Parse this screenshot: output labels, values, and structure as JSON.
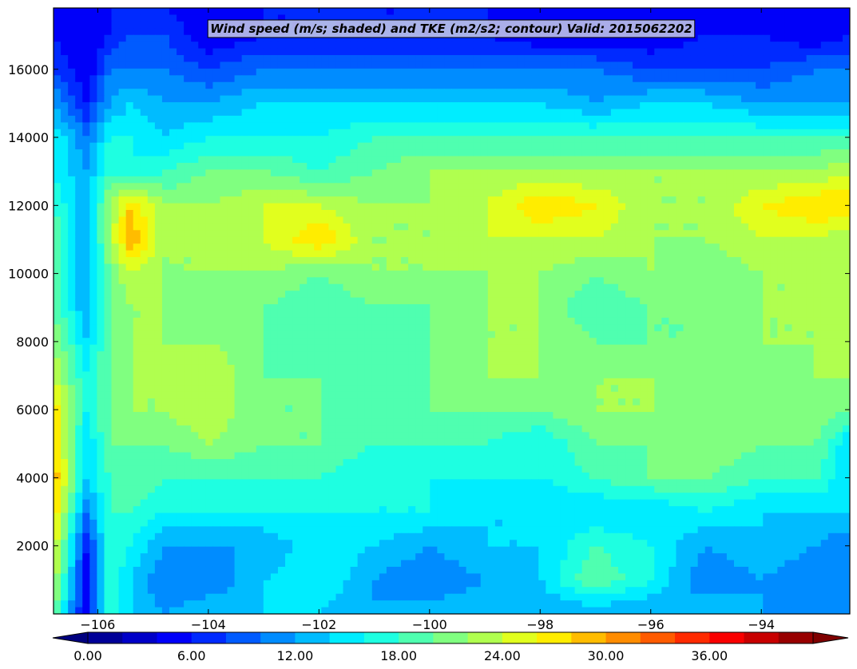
{
  "chart_data": {
    "type": "heatmap",
    "title": "Wind speed (m/s; shaded) and TKE (m2/s2; contour) Valid: 2015062202",
    "xlabel": "",
    "ylabel": "",
    "xlim": [
      -106.8,
      -92.4
    ],
    "ylim": [
      0,
      17800
    ],
    "x_ticks": [
      {
        "value": -106,
        "label": "−106"
      },
      {
        "value": -104,
        "label": "−104"
      },
      {
        "value": -102,
        "label": "−102"
      },
      {
        "value": -100,
        "label": "−100"
      },
      {
        "value": -98,
        "label": "−98"
      },
      {
        "value": -96,
        "label": "−96"
      },
      {
        "value": -94,
        "label": "−94"
      }
    ],
    "y_ticks": [
      {
        "value": 2000,
        "label": "2000"
      },
      {
        "value": 4000,
        "label": "4000"
      },
      {
        "value": 6000,
        "label": "6000"
      },
      {
        "value": 8000,
        "label": "8000"
      },
      {
        "value": 10000,
        "label": "10000"
      },
      {
        "value": 12000,
        "label": "12000"
      },
      {
        "value": 14000,
        "label": "14000"
      },
      {
        "value": 16000,
        "label": "16000"
      }
    ],
    "colorbar": {
      "vmin": 0,
      "vmax": 42,
      "step": 2,
      "extend": "both",
      "tick_labels": [
        {
          "value": 0,
          "label": "0.00"
        },
        {
          "value": 6,
          "label": "6.00"
        },
        {
          "value": 12,
          "label": "12.00"
        },
        {
          "value": 18,
          "label": "18.00"
        },
        {
          "value": 24,
          "label": "24.00"
        },
        {
          "value": 30,
          "label": "30.00"
        },
        {
          "value": 36,
          "label": "36.00"
        }
      ]
    },
    "grid": false,
    "colormap": "jet",
    "approx_field": {
      "x_lon": [
        -106.8,
        -106.2,
        -105.8,
        -105.4,
        -104.8,
        -104.0,
        -103.0,
        -102.0,
        -101.0,
        -100.0,
        -99.0,
        -98.0,
        -97.0,
        -96.0,
        -95.0,
        -94.0,
        -93.0,
        -92.4
      ],
      "y_height": [
        0,
        1000,
        2000,
        3000,
        4000,
        5000,
        6000,
        7000,
        8000,
        9000,
        10000,
        11000,
        12000,
        13000,
        14000,
        15000,
        16000,
        17000,
        17800
      ],
      "values": [
        [
          20,
          4,
          18,
          14,
          12,
          14,
          14,
          14,
          12,
          13,
          14,
          12,
          12,
          12,
          14,
          12,
          12,
          12
        ],
        [
          24,
          4,
          18,
          14,
          10,
          10,
          14,
          16,
          12,
          10,
          12,
          14,
          20,
          16,
          10,
          12,
          10,
          12
        ],
        [
          26,
          6,
          18,
          16,
          12,
          12,
          12,
          16,
          14,
          12,
          14,
          14,
          18,
          16,
          12,
          14,
          12,
          10
        ],
        [
          28,
          10,
          18,
          18,
          16,
          16,
          16,
          16,
          16,
          16,
          14,
          14,
          14,
          14,
          16,
          14,
          14,
          14
        ],
        [
          30,
          14,
          18,
          20,
          18,
          18,
          18,
          18,
          16,
          16,
          16,
          16,
          18,
          20,
          20,
          18,
          18,
          14
        ],
        [
          28,
          14,
          20,
          20,
          20,
          22,
          20,
          20,
          18,
          18,
          18,
          16,
          20,
          20,
          22,
          20,
          20,
          14
        ],
        [
          28,
          16,
          20,
          22,
          22,
          24,
          20,
          20,
          18,
          20,
          20,
          20,
          22,
          22,
          22,
          22,
          22,
          20
        ],
        [
          24,
          16,
          20,
          22,
          22,
          24,
          20,
          20,
          18,
          20,
          22,
          22,
          22,
          22,
          20,
          20,
          22,
          22
        ],
        [
          22,
          14,
          20,
          22,
          22,
          22,
          20,
          18,
          18,
          20,
          22,
          22,
          20,
          20,
          20,
          22,
          22,
          24
        ],
        [
          20,
          12,
          20,
          22,
          22,
          20,
          20,
          18,
          20,
          20,
          22,
          22,
          18,
          20,
          20,
          22,
          22,
          24
        ],
        [
          20,
          12,
          20,
          24,
          22,
          22,
          22,
          20,
          22,
          22,
          22,
          22,
          20,
          22,
          20,
          22,
          22,
          22
        ],
        [
          20,
          12,
          22,
          30,
          22,
          22,
          24,
          28,
          22,
          22,
          24,
          24,
          24,
          22,
          22,
          24,
          24,
          22
        ],
        [
          18,
          12,
          22,
          28,
          22,
          22,
          24,
          24,
          22,
          22,
          24,
          28,
          26,
          22,
          22,
          26,
          28,
          28
        ],
        [
          16,
          12,
          18,
          16,
          18,
          20,
          20,
          18,
          20,
          22,
          22,
          22,
          22,
          22,
          22,
          22,
          22,
          24
        ],
        [
          16,
          10,
          16,
          16,
          14,
          16,
          16,
          16,
          18,
          18,
          18,
          18,
          18,
          18,
          18,
          18,
          18,
          18
        ],
        [
          12,
          6,
          12,
          14,
          12,
          12,
          14,
          14,
          14,
          14,
          14,
          14,
          12,
          14,
          14,
          12,
          12,
          12
        ],
        [
          8,
          4,
          10,
          10,
          10,
          8,
          10,
          10,
          10,
          10,
          10,
          10,
          10,
          8,
          8,
          8,
          10,
          10
        ],
        [
          6,
          4,
          6,
          8,
          8,
          4,
          6,
          6,
          6,
          6,
          6,
          4,
          4,
          4,
          6,
          6,
          4,
          6
        ],
        [
          6,
          4,
          6,
          6,
          6,
          4,
          6,
          6,
          6,
          6,
          6,
          6,
          4,
          4,
          4,
          6,
          4,
          6
        ]
      ]
    }
  }
}
